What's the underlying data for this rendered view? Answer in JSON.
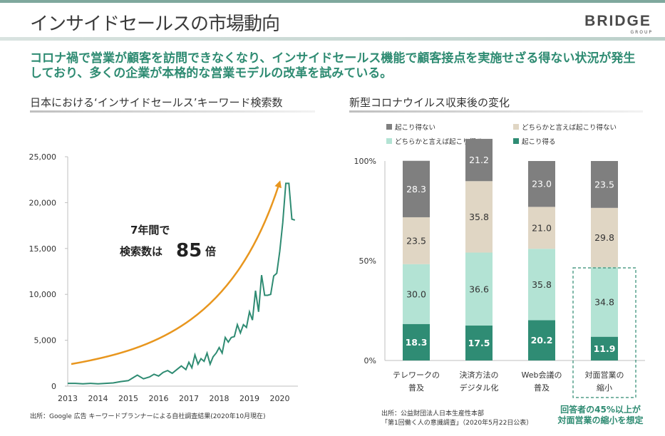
{
  "header": {
    "title": "インサイドセールスの市場動向",
    "logo_text": "BRIDGE",
    "logo_sub": "GROUP"
  },
  "lead": "コロナ禍で営業が顧客を訪問できなくなり、インサイドセールス機能で顧客接点を実施せざる得ない状況が発生しており、多くの企業が本格的な営業モデルの改革を試みている。",
  "left": {
    "heading": "日本における‘インサイドセールス’キーワード検索数",
    "annotation_line1": "7年間で",
    "annotation_line2a": "検索数は",
    "annotation_num": "85",
    "annotation_line2b": "倍",
    "source": "出所：Google 広告 キーワードプランナーによる自社調査結果(2020年10月現在)"
  },
  "right": {
    "heading": "新型コロナウイルス収束後の変化",
    "source_line1": "出所：公益財団法人日本生産性本部",
    "source_line2": "「第1回働く人の意識調査」（2020年5月22日公表）",
    "callout_line1": "回答者の45%以上が",
    "callout_line2": "対面営業の縮小を想定"
  },
  "colors": {
    "accent": "#2e8b72",
    "arrow": "#e8961e",
    "s1": "#2f8c74",
    "s2": "#b3e3d4",
    "s3": "#e0d6c4",
    "s4": "#7f7f7f"
  },
  "chart_data": [
    {
      "type": "line",
      "xlabel": "",
      "ylabel": "",
      "xticks": [
        "2013",
        "2014",
        "2015",
        "2016",
        "2017",
        "2018",
        "2019",
        "2020"
      ],
      "yticks": [
        "0",
        "5,000",
        "10,000",
        "15,000",
        "20,000",
        "25,000"
      ],
      "ylim": [
        0,
        25000
      ],
      "xlim": [
        2013,
        2020.6
      ],
      "series": [
        {
          "x": [
            2013.0,
            2013.25,
            2013.5,
            2013.75,
            2014.0,
            2014.25,
            2014.5,
            2014.75,
            2015.0,
            2015.15,
            2015.3,
            2015.5,
            2015.7,
            2015.85,
            2016.0,
            2016.15,
            2016.3,
            2016.45,
            2016.6,
            2016.75,
            2016.9,
            2017.0,
            2017.1,
            2017.2,
            2017.3,
            2017.4,
            2017.5,
            2017.6,
            2017.7,
            2017.8,
            2017.9,
            2018.0,
            2018.1,
            2018.2,
            2018.3,
            2018.4,
            2018.5,
            2018.6,
            2018.7,
            2018.8,
            2018.9,
            2019.0,
            2019.1,
            2019.2,
            2019.3,
            2019.4,
            2019.5,
            2019.6,
            2019.7,
            2019.8,
            2019.9,
            2020.0,
            2020.1,
            2020.2,
            2020.3,
            2020.4,
            2020.5
          ],
          "y": [
            300,
            300,
            250,
            300,
            250,
            300,
            350,
            500,
            600,
            900,
            1200,
            800,
            1000,
            1300,
            1100,
            1500,
            1700,
            1400,
            1800,
            2200,
            1800,
            2600,
            2000,
            3400,
            2400,
            3000,
            2700,
            3600,
            2400,
            3200,
            3600,
            4200,
            3600,
            5300,
            4800,
            5300,
            5400,
            6700,
            5800,
            6700,
            6400,
            8100,
            7200,
            10400,
            8100,
            12100,
            9900,
            9900,
            10000,
            12000,
            12300,
            14700,
            17800,
            22100,
            22100,
            18200,
            18100
          ]
        }
      ],
      "annotations": [
        "7年間で",
        "検索数は85倍"
      ]
    },
    {
      "type": "bar",
      "stacked": true,
      "categories": [
        "テレワークの\n普及",
        "決済方法の\nデジタル化",
        "Web会議の\n普及",
        "対面営業の\n縮小"
      ],
      "yticks": [
        "0%",
        "50%",
        "100%"
      ],
      "ylim": [
        0,
        100
      ],
      "legend": "top",
      "series": [
        {
          "name": "起こり得る",
          "values": [
            18.3,
            17.5,
            20.2,
            11.9
          ]
        },
        {
          "name": "どちらかと言えば起こり得る",
          "values": [
            30.0,
            36.6,
            35.8,
            34.8
          ]
        },
        {
          "name": "どちらかと言えば起こり得ない",
          "values": [
            23.5,
            35.8,
            21.0,
            29.8
          ]
        },
        {
          "name": "起こり得ない",
          "values": [
            28.3,
            21.2,
            23.0,
            23.5
          ]
        }
      ]
    }
  ]
}
